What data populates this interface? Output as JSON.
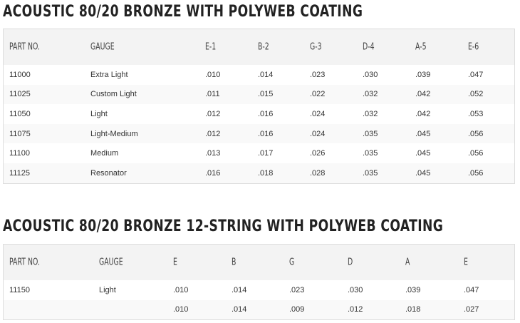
{
  "tables": [
    {
      "title": "ACOUSTIC 80/20 BRONZE WITH POLYWEB COATING",
      "headers": [
        "PART NO.",
        "GAUGE",
        "E-1",
        "B-2",
        "G-3",
        "D-4",
        "A-5",
        "E-6"
      ],
      "rows": [
        [
          "11000",
          "Extra Light",
          ".010",
          ".014",
          ".023",
          ".030",
          ".039",
          ".047"
        ],
        [
          "11025",
          "Custom Light",
          ".011",
          ".015",
          ".022",
          ".032",
          ".042",
          ".052"
        ],
        [
          "11050",
          "Light",
          ".012",
          ".016",
          ".024",
          ".032",
          ".042",
          ".053"
        ],
        [
          "11075",
          "Light-Medium",
          ".012",
          ".016",
          ".024",
          ".035",
          ".045",
          ".056"
        ],
        [
          "11100",
          "Medium",
          ".013",
          ".017",
          ".026",
          ".035",
          ".045",
          ".056"
        ],
        [
          "11125",
          "Resonator",
          ".016",
          ".018",
          ".028",
          ".035",
          ".045",
          ".056"
        ]
      ]
    },
    {
      "title": "ACOUSTIC 80/20 BRONZE 12-STRING WITH POLYWEB COATING",
      "headers": [
        "PART NO.",
        "GAUGE",
        "E",
        "B",
        "G",
        "D",
        "A",
        "E"
      ],
      "rows": [
        [
          "11150",
          "Light",
          ".010",
          ".014",
          ".023",
          ".030",
          ".039",
          ".047"
        ],
        [
          "",
          "",
          ".010",
          ".014",
          ".009",
          ".012",
          ".018",
          ".027"
        ]
      ]
    }
  ]
}
